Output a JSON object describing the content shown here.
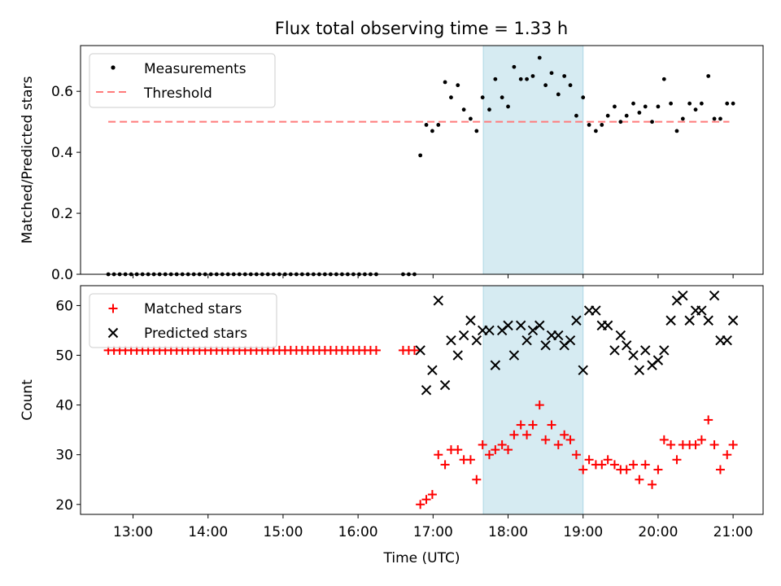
{
  "title": "Flux total observing time = 1.33 h",
  "colors": {
    "measurement": "#000000",
    "threshold": "#ff7b7b",
    "matched": "#ff0000",
    "predicted": "#000000",
    "highlight": "#add8e6"
  },
  "chart_data": [
    {
      "type": "scatter",
      "ylabel": "Matched/Predicted stars",
      "xlabel": "",
      "xlim": [
        12.3,
        21.4
      ],
      "ylim": [
        0,
        0.75
      ],
      "yticks": [
        0,
        0.2,
        0.4,
        0.6
      ],
      "ytick_labels": [
        "0.0",
        "0.2",
        "0.4",
        "0.6"
      ],
      "highlight_band": [
        17.67,
        19.0
      ],
      "legend": [
        "Measurements",
        "Threshold"
      ],
      "legend_loc": "upper left",
      "threshold": {
        "name": "Threshold",
        "value": 0.5,
        "x_range": [
          12.67,
          20.95
        ]
      },
      "measurements_name": "Measurements",
      "zero_ranges": [
        [
          12.67,
          16.3
        ],
        [
          16.6,
          16.8
        ]
      ],
      "zero_step": 0.076,
      "measurements": [
        [
          16.83,
          0.39
        ],
        [
          16.91,
          0.49
        ],
        [
          16.99,
          0.47
        ],
        [
          17.07,
          0.49
        ],
        [
          17.16,
          0.63
        ],
        [
          17.24,
          0.58
        ],
        [
          17.33,
          0.62
        ],
        [
          17.41,
          0.54
        ],
        [
          17.5,
          0.51
        ],
        [
          17.58,
          0.47
        ],
        [
          17.66,
          0.58
        ],
        [
          17.75,
          0.54
        ],
        [
          17.83,
          0.64
        ],
        [
          17.92,
          0.58
        ],
        [
          18.0,
          0.55
        ],
        [
          18.08,
          0.68
        ],
        [
          18.17,
          0.64
        ],
        [
          18.25,
          0.64
        ],
        [
          18.33,
          0.65
        ],
        [
          18.42,
          0.71
        ],
        [
          18.5,
          0.62
        ],
        [
          18.58,
          0.66
        ],
        [
          18.67,
          0.59
        ],
        [
          18.75,
          0.65
        ],
        [
          18.83,
          0.62
        ],
        [
          18.91,
          0.52
        ],
        [
          19.0,
          0.58
        ],
        [
          19.08,
          0.49
        ],
        [
          19.17,
          0.47
        ],
        [
          19.25,
          0.49
        ],
        [
          19.33,
          0.52
        ],
        [
          19.42,
          0.55
        ],
        [
          19.5,
          0.5
        ],
        [
          19.58,
          0.52
        ],
        [
          19.67,
          0.56
        ],
        [
          19.75,
          0.53
        ],
        [
          19.83,
          0.55
        ],
        [
          19.92,
          0.5
        ],
        [
          20.0,
          0.55
        ],
        [
          20.08,
          0.64
        ],
        [
          20.17,
          0.56
        ],
        [
          20.25,
          0.47
        ],
        [
          20.33,
          0.51
        ],
        [
          20.42,
          0.56
        ],
        [
          20.5,
          0.54
        ],
        [
          20.58,
          0.56
        ],
        [
          20.67,
          0.65
        ],
        [
          20.75,
          0.51
        ],
        [
          20.83,
          0.51
        ],
        [
          20.92,
          0.56
        ],
        [
          21.0,
          0.56
        ]
      ]
    },
    {
      "type": "scatter",
      "ylabel": "Count",
      "xlabel": "Time (UTC)",
      "xlim": [
        12.3,
        21.4
      ],
      "ylim": [
        18,
        64
      ],
      "yticks": [
        20,
        30,
        40,
        50,
        60
      ],
      "ytick_labels": [
        "20",
        "30",
        "40",
        "50",
        "60"
      ],
      "xticks": [
        13,
        14,
        15,
        16,
        17,
        18,
        19,
        20,
        21
      ],
      "xtick_labels": [
        "13:00",
        "14:00",
        "15:00",
        "16:00",
        "17:00",
        "18:00",
        "19:00",
        "20:00",
        "21:00"
      ],
      "highlight_band": [
        17.67,
        19.0
      ],
      "legend": [
        "Matched stars",
        "Predicted stars"
      ],
      "legend_loc": "upper left",
      "flat_ranges": {
        "value": 51,
        "ranges": [
          [
            12.67,
            16.3
          ],
          [
            16.6,
            16.8
          ]
        ],
        "step": 0.076
      },
      "series": [
        {
          "name": "Matched stars",
          "marker": "+",
          "points": [
            [
              16.83,
              20
            ],
            [
              16.91,
              21
            ],
            [
              16.99,
              22
            ],
            [
              17.07,
              30
            ],
            [
              17.16,
              28
            ],
            [
              17.24,
              31
            ],
            [
              17.33,
              31
            ],
            [
              17.41,
              29
            ],
            [
              17.5,
              29
            ],
            [
              17.58,
              25
            ],
            [
              17.66,
              32
            ],
            [
              17.75,
              30
            ],
            [
              17.83,
              31
            ],
            [
              17.92,
              32
            ],
            [
              18.0,
              31
            ],
            [
              18.08,
              34
            ],
            [
              18.17,
              36
            ],
            [
              18.25,
              34
            ],
            [
              18.33,
              36
            ],
            [
              18.42,
              40
            ],
            [
              18.5,
              33
            ],
            [
              18.58,
              36
            ],
            [
              18.67,
              32
            ],
            [
              18.75,
              34
            ],
            [
              18.83,
              33
            ],
            [
              18.91,
              30
            ],
            [
              19.0,
              27
            ],
            [
              19.08,
              29
            ],
            [
              19.17,
              28
            ],
            [
              19.25,
              28
            ],
            [
              19.33,
              29
            ],
            [
              19.42,
              28
            ],
            [
              19.5,
              27
            ],
            [
              19.58,
              27
            ],
            [
              19.67,
              28
            ],
            [
              19.75,
              25
            ],
            [
              19.83,
              28
            ],
            [
              19.92,
              24
            ],
            [
              20.0,
              27
            ],
            [
              20.08,
              33
            ],
            [
              20.17,
              32
            ],
            [
              20.25,
              29
            ],
            [
              20.33,
              32
            ],
            [
              20.42,
              32
            ],
            [
              20.5,
              32
            ],
            [
              20.58,
              33
            ],
            [
              20.67,
              37
            ],
            [
              20.75,
              32
            ],
            [
              20.83,
              27
            ],
            [
              20.92,
              30
            ],
            [
              21.0,
              32
            ]
          ]
        },
        {
          "name": "Predicted stars",
          "marker": "x",
          "points": [
            [
              16.83,
              51
            ],
            [
              16.91,
              43
            ],
            [
              16.99,
              47
            ],
            [
              17.07,
              61
            ],
            [
              17.16,
              44
            ],
            [
              17.24,
              53
            ],
            [
              17.33,
              50
            ],
            [
              17.41,
              54
            ],
            [
              17.5,
              57
            ],
            [
              17.58,
              53
            ],
            [
              17.66,
              55
            ],
            [
              17.75,
              55
            ],
            [
              17.83,
              48
            ],
            [
              17.92,
              55
            ],
            [
              18.0,
              56
            ],
            [
              18.08,
              50
            ],
            [
              18.17,
              56
            ],
            [
              18.25,
              53
            ],
            [
              18.33,
              55
            ],
            [
              18.42,
              56
            ],
            [
              18.5,
              52
            ],
            [
              18.58,
              54
            ],
            [
              18.67,
              54
            ],
            [
              18.75,
              52
            ],
            [
              18.83,
              53
            ],
            [
              18.91,
              57
            ],
            [
              19.0,
              47
            ],
            [
              19.08,
              59
            ],
            [
              19.17,
              59
            ],
            [
              19.25,
              56
            ],
            [
              19.33,
              56
            ],
            [
              19.42,
              51
            ],
            [
              19.5,
              54
            ],
            [
              19.58,
              52
            ],
            [
              19.67,
              50
            ],
            [
              19.75,
              47
            ],
            [
              19.83,
              51
            ],
            [
              19.92,
              48
            ],
            [
              20.0,
              49
            ],
            [
              20.08,
              51
            ],
            [
              20.17,
              57
            ],
            [
              20.25,
              61
            ],
            [
              20.33,
              62
            ],
            [
              20.42,
              57
            ],
            [
              20.5,
              59
            ],
            [
              20.58,
              59
            ],
            [
              20.67,
              57
            ],
            [
              20.75,
              62
            ],
            [
              20.83,
              53
            ],
            [
              20.92,
              53
            ],
            [
              21.0,
              57
            ]
          ]
        }
      ]
    }
  ]
}
